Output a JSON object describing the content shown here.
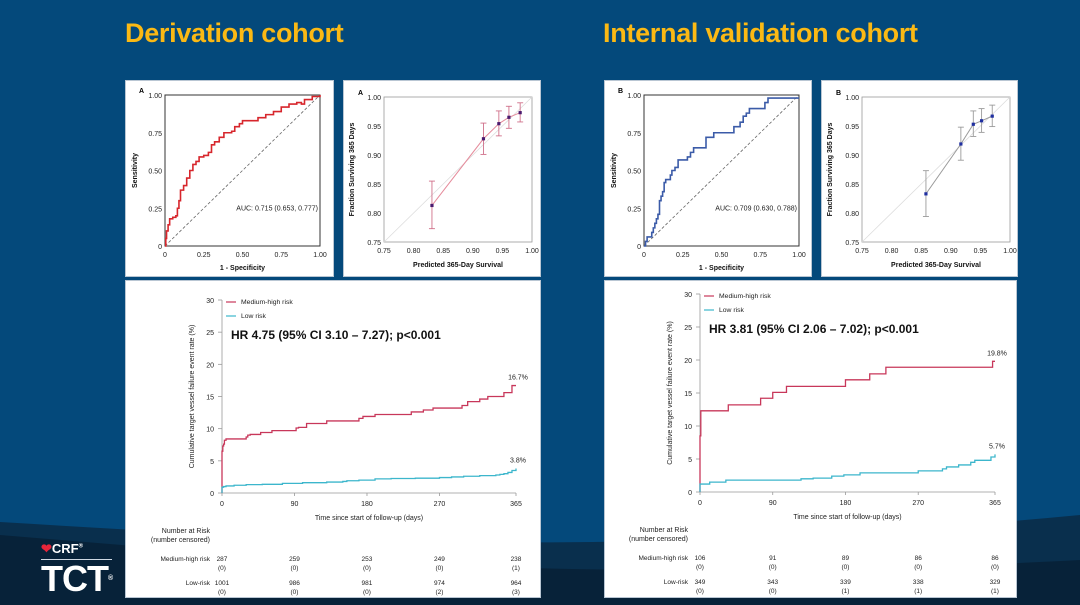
{
  "slide": {
    "titles": {
      "left": "Derivation cohort",
      "right": "Internal validation cohort"
    },
    "logo": {
      "brand_small": "CRF",
      "brand_large": "TCT",
      "registered": "®"
    },
    "colors": {
      "background": "#04497b",
      "title": "#fbb914",
      "roc_derivation": "#d7262c",
      "roc_validation": "#3b5ba8",
      "calib_derivation_line": "#e58b9b",
      "calib_validation_line": "#9a9a9a",
      "medium_high": "#c8375a",
      "low": "#3cb6cc"
    }
  },
  "chart_data": [
    {
      "id": "roc-derivation",
      "type": "line",
      "panel_label": "A",
      "title": "",
      "xlabel": "1 - Specificity",
      "ylabel": "Sensitivity",
      "xlim": [
        0,
        1
      ],
      "ylim": [
        0,
        1
      ],
      "xticks": [
        "0",
        "0.25",
        "0.50",
        "0.75",
        "1.00"
      ],
      "yticks": [
        "0",
        "0.25",
        "0.50",
        "0.75",
        "1.00"
      ],
      "annotation": "AUC: 0.715 (0.653, 0.777)",
      "reference_line": "diagonal dashed",
      "series": [
        {
          "name": "ROC",
          "x": [
            0,
            0.005,
            0.01,
            0.02,
            0.03,
            0.05,
            0.07,
            0.08,
            0.09,
            0.1,
            0.12,
            0.14,
            0.16,
            0.18,
            0.2,
            0.22,
            0.25,
            0.28,
            0.3,
            0.32,
            0.35,
            0.38,
            0.4,
            0.43,
            0.45,
            0.48,
            0.5,
            0.55,
            0.6,
            0.65,
            0.7,
            0.75,
            0.8,
            0.85,
            0.88,
            0.9,
            0.95,
            1.0
          ],
          "y": [
            0,
            0.05,
            0.1,
            0.14,
            0.18,
            0.19,
            0.2,
            0.25,
            0.3,
            0.37,
            0.4,
            0.45,
            0.5,
            0.54,
            0.56,
            0.59,
            0.6,
            0.62,
            0.67,
            0.69,
            0.72,
            0.75,
            0.75,
            0.76,
            0.79,
            0.81,
            0.83,
            0.83,
            0.85,
            0.87,
            0.89,
            0.92,
            0.94,
            0.95,
            0.94,
            0.97,
            0.99,
            1.0
          ]
        }
      ]
    },
    {
      "id": "calib-derivation",
      "type": "scatter",
      "panel_label": "A",
      "xlabel": "Predicted 365-Day Survival",
      "ylabel": "Fraction Surviving 365 Days",
      "xlim": [
        0.75,
        1.0
      ],
      "ylim": [
        0.75,
        1.0
      ],
      "xticks": [
        "0.75",
        "0.80",
        "0.85",
        "0.90",
        "0.95",
        "1.00"
      ],
      "yticks": [
        "0.75",
        "0.80",
        "0.85",
        "0.90",
        "0.95",
        "1.00"
      ],
      "reference_line": "diagonal",
      "points": [
        {
          "x": 0.831,
          "y": 0.813,
          "lo": 0.773,
          "hi": 0.855
        },
        {
          "x": 0.918,
          "y": 0.928,
          "lo": 0.901,
          "hi": 0.955
        },
        {
          "x": 0.944,
          "y": 0.954,
          "lo": 0.933,
          "hi": 0.976
        },
        {
          "x": 0.961,
          "y": 0.965,
          "lo": 0.946,
          "hi": 0.984
        },
        {
          "x": 0.98,
          "y": 0.973,
          "lo": 0.957,
          "hi": 0.99
        }
      ]
    },
    {
      "id": "km-derivation",
      "type": "line",
      "xlabel": "Time since start of follow-up (days)",
      "ylabel": "Cumulative target vessel failure event rate (%)",
      "xlim": [
        0,
        365
      ],
      "ylim": [
        0,
        30
      ],
      "xticks": [
        "0",
        "90",
        "180",
        "270",
        "365"
      ],
      "yticks": [
        "0",
        "5",
        "10",
        "15",
        "20",
        "25",
        "30"
      ],
      "legend": [
        "Medium-high risk",
        "Low risk"
      ],
      "legend_position": "top-left",
      "annotation": "HR 4.75 (95% CI 3.10 – 7.27); p<0.001",
      "series": [
        {
          "name": "Medium-high risk",
          "end_label": "16.7%",
          "x": [
            0,
            1,
            2,
            3,
            5,
            30,
            32,
            35,
            48,
            62,
            92,
            95,
            105,
            115,
            130,
            160,
            170,
            175,
            190,
            200,
            220,
            235,
            240,
            250,
            262,
            270,
            298,
            305,
            310,
            320,
            330,
            340,
            350,
            355,
            360,
            365
          ],
          "y": [
            6.5,
            7.3,
            7.6,
            8.2,
            8.4,
            8.7,
            9.0,
            9.1,
            9.4,
            9.7,
            10.1,
            10.2,
            10.8,
            10.8,
            11.2,
            11.2,
            11.6,
            11.9,
            12.2,
            12.2,
            12.2,
            12.6,
            12.6,
            12.9,
            13.2,
            13.2,
            13.6,
            14.2,
            14.2,
            14.6,
            15.0,
            15.0,
            15.6,
            15.6,
            16.7,
            16.7
          ]
        },
        {
          "name": "Low risk",
          "end_label": "3.8%",
          "x": [
            0,
            2,
            5,
            15,
            30,
            50,
            75,
            100,
            130,
            150,
            155,
            170,
            190,
            210,
            240,
            270,
            285,
            300,
            320,
            340,
            345,
            350,
            355,
            360,
            365
          ],
          "y": [
            0.9,
            1.0,
            1.1,
            1.2,
            1.3,
            1.35,
            1.5,
            1.6,
            1.7,
            1.8,
            1.9,
            2.0,
            2.2,
            2.25,
            2.3,
            2.4,
            2.5,
            2.6,
            2.7,
            2.8,
            2.9,
            3.0,
            3.2,
            3.5,
            3.8
          ]
        }
      ],
      "risk_table": {
        "header": [
          "Number at Risk",
          "(number censored)"
        ],
        "rows": [
          {
            "label": "Medium-high risk",
            "n": [
              "287",
              "259",
              "253",
              "249",
              "238"
            ],
            "censored": [
              "(0)",
              "(0)",
              "(0)",
              "(0)",
              "(1)"
            ]
          },
          {
            "label": "Low-risk",
            "n": [
              "1001",
              "986",
              "981",
              "974",
              "964"
            ],
            "censored": [
              "(0)",
              "(0)",
              "(0)",
              "(2)",
              "(3)"
            ]
          }
        ]
      }
    },
    {
      "id": "roc-validation",
      "type": "line",
      "panel_label": "B",
      "xlabel": "1 - Specificity",
      "ylabel": "Sensitivity",
      "xlim": [
        0,
        1
      ],
      "ylim": [
        0,
        1
      ],
      "xticks": [
        "0",
        "0.25",
        "0.50",
        "0.75",
        "1.00"
      ],
      "yticks": [
        "0",
        "0.25",
        "0.50",
        "0.75",
        "1.00"
      ],
      "annotation": "AUC: 0.709 (0.630, 0.788)",
      "reference_line": "diagonal dashed",
      "series": [
        {
          "name": "ROC",
          "x": [
            0,
            0.01,
            0.02,
            0.04,
            0.05,
            0.06,
            0.07,
            0.08,
            0.09,
            0.1,
            0.11,
            0.12,
            0.13,
            0.14,
            0.17,
            0.18,
            0.2,
            0.22,
            0.25,
            0.28,
            0.3,
            0.32,
            0.35,
            0.38,
            0.4,
            0.42,
            0.45,
            0.48,
            0.55,
            0.58,
            0.62,
            0.64,
            0.66,
            0.68,
            0.72,
            0.75,
            0.78,
            0.8,
            0.85,
            1.0
          ],
          "y": [
            0,
            0.03,
            0.06,
            0.06,
            0.09,
            0.12,
            0.15,
            0.18,
            0.21,
            0.3,
            0.33,
            0.36,
            0.42,
            0.44,
            0.47,
            0.5,
            0.52,
            0.57,
            0.57,
            0.59,
            0.62,
            0.65,
            0.65,
            0.65,
            0.72,
            0.72,
            0.75,
            0.75,
            0.75,
            0.79,
            0.82,
            0.86,
            0.88,
            0.91,
            0.91,
            0.91,
            0.95,
            0.98,
            0.98,
            0.98
          ]
        }
      ]
    },
    {
      "id": "calib-validation",
      "type": "scatter",
      "panel_label": "B",
      "xlabel": "Predicted 365-Day Survival",
      "ylabel": "Fraction Surviving 365 Days",
      "xlim": [
        0.75,
        1.0
      ],
      "ylim": [
        0.75,
        1.0
      ],
      "xticks": [
        "0.75",
        "0.80",
        "0.85",
        "0.90",
        "0.95",
        "1.00"
      ],
      "yticks": [
        "0.75",
        "0.80",
        "0.85",
        "0.90",
        "0.95",
        "1.00"
      ],
      "reference_line": "diagonal",
      "points": [
        {
          "x": 0.858,
          "y": 0.833,
          "lo": 0.794,
          "hi": 0.873
        },
        {
          "x": 0.917,
          "y": 0.919,
          "lo": 0.891,
          "hi": 0.948
        },
        {
          "x": 0.938,
          "y": 0.953,
          "lo": 0.932,
          "hi": 0.976
        },
        {
          "x": 0.952,
          "y": 0.959,
          "lo": 0.939,
          "hi": 0.98
        },
        {
          "x": 0.97,
          "y": 0.967,
          "lo": 0.949,
          "hi": 0.986
        }
      ]
    },
    {
      "id": "km-validation",
      "type": "line",
      "xlabel": "Time since start of follow-up (days)",
      "ylabel": "Cumulative target vessel failure event rate (%)",
      "xlim": [
        0,
        365
      ],
      "ylim": [
        0,
        30
      ],
      "xticks": [
        "0",
        "90",
        "180",
        "270",
        "365"
      ],
      "yticks": [
        "0",
        "5",
        "10",
        "15",
        "20",
        "25",
        "30"
      ],
      "legend": [
        "Medium-high risk",
        "Low risk"
      ],
      "legend_position": "top-left",
      "annotation": "HR 3.81 (95% CI 2.06 – 7.02); p<0.001",
      "series": [
        {
          "name": "Medium-high risk",
          "end_label": "19.8%",
          "x": [
            0,
            1,
            2,
            35,
            75,
            90,
            107,
            140,
            180,
            210,
            230,
            360,
            362,
            365
          ],
          "y": [
            8.5,
            12.3,
            12.3,
            13.2,
            14.2,
            15.1,
            16.0,
            16.0,
            17.0,
            17.9,
            18.9,
            18.9,
            19.8,
            19.8
          ]
        },
        {
          "name": "Low risk",
          "end_label": "5.7%",
          "x": [
            0,
            12,
            32,
            100,
            125,
            140,
            163,
            178,
            198,
            230,
            270,
            300,
            305,
            320,
            325,
            335,
            340,
            355,
            360,
            365
          ],
          "y": [
            1.2,
            1.5,
            1.8,
            1.8,
            2.0,
            2.1,
            2.4,
            2.6,
            2.9,
            2.9,
            3.2,
            3.5,
            3.8,
            4.1,
            4.1,
            4.5,
            4.8,
            4.8,
            5.3,
            5.7
          ]
        }
      ],
      "risk_table": {
        "header": [
          "Number at Risk",
          "(number censored)"
        ],
        "rows": [
          {
            "label": "Medium-high risk",
            "n": [
              "106",
              "91",
              "89",
              "86",
              "86"
            ],
            "censored": [
              "(0)",
              "(0)",
              "(0)",
              "(0)",
              "(0)"
            ]
          },
          {
            "label": "Low-risk",
            "n": [
              "349",
              "343",
              "339",
              "338",
              "329"
            ],
            "censored": [
              "(0)",
              "(0)",
              "(1)",
              "(1)",
              "(1)"
            ]
          }
        ]
      }
    }
  ]
}
